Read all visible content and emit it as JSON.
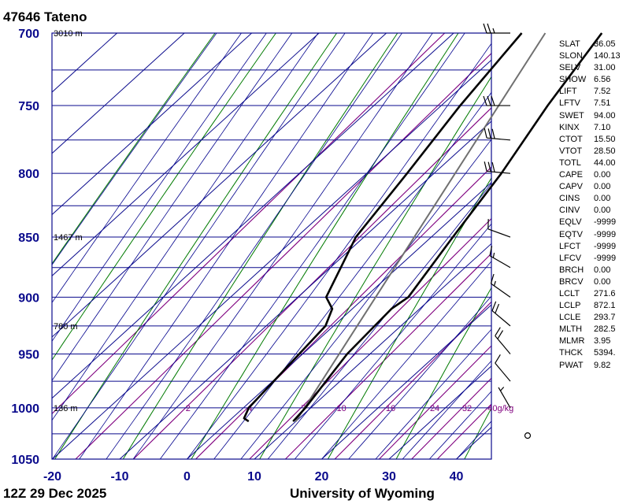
{
  "header": {
    "title": "47646  Tateno"
  },
  "footer": {
    "datetime": "12Z 29 Dec 2025",
    "credit": "University of Wyoming"
  },
  "chart_data": {
    "type": "skew-t",
    "title": "47646  Tateno",
    "pressure_levels": [
      700,
      750,
      800,
      850,
      900,
      950,
      1000,
      1050
    ],
    "pressure_labels": [
      "700",
      "750",
      "800",
      "850",
      "900",
      "950",
      "1000",
      "1050"
    ],
    "pressure_range_hpa": [
      700,
      1050
    ],
    "x_ticks": [
      -20,
      -10,
      0,
      10,
      20,
      30,
      40
    ],
    "x_tick_labels": [
      "-20",
      "-10",
      "0",
      "10",
      "20",
      "30",
      "40"
    ],
    "height_labels": [
      {
        "p": 700,
        "text": "3010 m"
      },
      {
        "p": 850,
        "text": "1467 m"
      },
      {
        "p": 925,
        "text": "780 m"
      },
      {
        "p": 1000,
        "text": "136 m"
      }
    ],
    "mixing_ratio_labels": [
      {
        "w": 2,
        "text": "2"
      },
      {
        "w": 4,
        "text": "4"
      },
      {
        "w": 7,
        "text": "7"
      },
      {
        "w": 10,
        "text": "10"
      },
      {
        "w": 16,
        "text": "16"
      },
      {
        "w": 24,
        "text": "24"
      },
      {
        "w": 32,
        "text": "32"
      },
      {
        "w": 40,
        "text": "40g/kg"
      }
    ],
    "temperature": [
      {
        "p": 1013,
        "t": 9.6
      },
      {
        "p": 1000,
        "t": 9.2
      },
      {
        "p": 950,
        "t": 6.6
      },
      {
        "p": 910,
        "t": 5.8
      },
      {
        "p": 900,
        "t": 6.4
      },
      {
        "p": 850,
        "t": 3.2
      },
      {
        "p": 800,
        "t": 0.0
      },
      {
        "p": 750,
        "t": -4.2
      },
      {
        "p": 700,
        "t": -8.0
      }
    ],
    "dewpoint": [
      {
        "p": 1013,
        "t": 3.0
      },
      {
        "p": 1010,
        "t": 1.8
      },
      {
        "p": 1000,
        "t": 0.8
      },
      {
        "p": 925,
        "t": -1.2
      },
      {
        "p": 910,
        "t": -3.0
      },
      {
        "p": 900,
        "t": -5.8
      },
      {
        "p": 850,
        "t": -11.2
      },
      {
        "p": 800,
        "t": -14.0
      },
      {
        "p": 750,
        "t": -17.2
      },
      {
        "p": 700,
        "t": -19.9
      }
    ],
    "parcel": [
      {
        "p": 1013,
        "t": 10.0
      },
      {
        "p": 700,
        "t": -16.4
      }
    ],
    "wind_barbs": [
      {
        "p": 700,
        "dir": 270,
        "spd": 25
      },
      {
        "p": 750,
        "dir": 270,
        "spd": 30
      },
      {
        "p": 775,
        "dir": 275,
        "spd": 30
      },
      {
        "p": 800,
        "dir": 275,
        "spd": 30
      },
      {
        "p": 850,
        "dir": 290,
        "spd": 10
      },
      {
        "p": 875,
        "dir": 300,
        "spd": 15
      },
      {
        "p": 900,
        "dir": 305,
        "spd": 15
      },
      {
        "p": 925,
        "dir": 310,
        "spd": 20
      },
      {
        "p": 950,
        "dir": 320,
        "spd": 20
      },
      {
        "p": 975,
        "dir": 320,
        "spd": 10
      },
      {
        "p": 1000,
        "dir": 330,
        "spd": 5
      },
      {
        "p": 1013,
        "dir": 0,
        "spd": 0
      }
    ],
    "grid": true
  },
  "indices": [
    {
      "name": "SLAT",
      "value": "36.05"
    },
    {
      "name": "SLON",
      "value": "140.13"
    },
    {
      "name": "SELV",
      "value": "31.00"
    },
    {
      "name": "SHOW",
      "value": "6.56"
    },
    {
      "name": "LIFT",
      "value": "7.52"
    },
    {
      "name": "LFTV",
      "value": "7.51"
    },
    {
      "name": "SWET",
      "value": "94.00"
    },
    {
      "name": "KINX",
      "value": "7.10"
    },
    {
      "name": "CTOT",
      "value": "15.50"
    },
    {
      "name": "VTOT",
      "value": "28.50"
    },
    {
      "name": "TOTL",
      "value": "44.00"
    },
    {
      "name": "CAPE",
      "value": "0.00"
    },
    {
      "name": "CAPV",
      "value": "0.00"
    },
    {
      "name": "CINS",
      "value": "0.00"
    },
    {
      "name": "CINV",
      "value": "0.00"
    },
    {
      "name": "EQLV",
      "value": "-9999"
    },
    {
      "name": "EQTV",
      "value": "-9999"
    },
    {
      "name": "LFCT",
      "value": "-9999"
    },
    {
      "name": "LFCV",
      "value": "-9999"
    },
    {
      "name": "BRCH",
      "value": "0.00"
    },
    {
      "name": "BRCV",
      "value": "0.00"
    },
    {
      "name": "LCLT",
      "value": "271.6"
    },
    {
      "name": "LCLP",
      "value": "872.1"
    },
    {
      "name": "LCLE",
      "value": "293.7"
    },
    {
      "name": "MLTH",
      "value": "282.5"
    },
    {
      "name": "MLMR",
      "value": "3.95"
    },
    {
      "name": "THCK",
      "value": "5394."
    },
    {
      "name": "PWAT",
      "value": "9.82"
    }
  ],
  "colors": {
    "frame": "#0a0a8c",
    "isotherm": "#0a0a8c",
    "dry_adiabat": "#007a00",
    "moist_adiabat": "#00008c",
    "mixing_ratio": "#80007f",
    "temperature": "#000000",
    "dewpoint": "#000000",
    "parcel": "#707070",
    "barb": "#000000"
  }
}
